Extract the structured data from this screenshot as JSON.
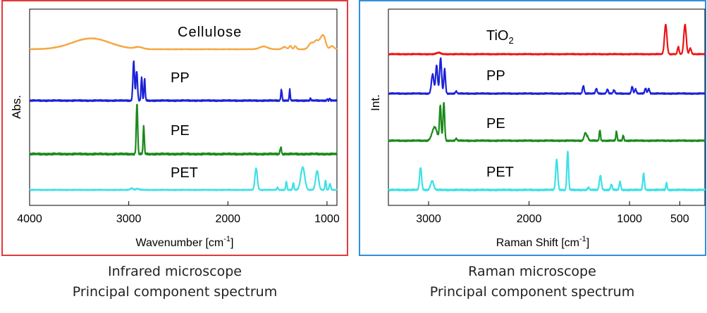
{
  "chart_data": [
    {
      "type": "line",
      "title": "Infrared microscope",
      "subtitle": "Principal component spectrum",
      "xlabel": "Wavenumber [cm",
      "xlabel_sup": "-1",
      "xlabel_end": "]",
      "ylabel": "Abs.",
      "xlim": [
        4000,
        900
      ],
      "xticks": [
        "4000",
        "3000",
        "2000",
        "1000"
      ],
      "series": [
        {
          "name": "Cellulose",
          "color": "#f5a742",
          "peaks": [
            [
              3380,
              0.7,
              190
            ],
            [
              2900,
              0.12,
              40
            ],
            [
              1640,
              0.18,
              40
            ],
            [
              1430,
              0.15,
              20
            ],
            [
              1370,
              0.22,
              12
            ],
            [
              1320,
              0.2,
              12
            ],
            [
              1160,
              0.4,
              25
            ],
            [
              1110,
              0.45,
              20
            ],
            [
              1060,
              0.6,
              25
            ],
            [
              1030,
              0.55,
              20
            ],
            [
              950,
              0.2,
              20
            ]
          ]
        },
        {
          "name": "PP",
          "color": "#1a22d6",
          "peaks": [
            [
              2950,
              1.0,
              8
            ],
            [
              2920,
              0.75,
              8
            ],
            [
              2870,
              0.6,
              6
            ],
            [
              2840,
              0.55,
              6
            ],
            [
              1460,
              0.28,
              6
            ],
            [
              1376,
              0.28,
              5
            ],
            [
              1167,
              0.07,
              4
            ],
            [
              998,
              0.05,
              4
            ],
            [
              973,
              0.06,
              4
            ]
          ]
        },
        {
          "name": "PE",
          "color": "#1a8a1a",
          "peaks": [
            [
              2917,
              1.0,
              7
            ],
            [
              2849,
              0.55,
              6
            ],
            [
              1470,
              0.1,
              6
            ],
            [
              1462,
              0.08,
              4
            ],
            [
              720,
              0.06,
              4
            ]
          ]
        },
        {
          "name": "PET",
          "color": "#3ee0e6",
          "peaks": [
            [
              2970,
              0.07,
              15
            ],
            [
              2910,
              0.05,
              15
            ],
            [
              1715,
              0.9,
              12
            ],
            [
              1500,
              0.1,
              6
            ],
            [
              1410,
              0.35,
              6
            ],
            [
              1340,
              0.3,
              6
            ],
            [
              1245,
              0.95,
              20
            ],
            [
              1100,
              0.8,
              15
            ],
            [
              1015,
              0.4,
              6
            ],
            [
              970,
              0.25,
              8
            ],
            [
              870,
              0.2,
              6
            ]
          ]
        }
      ]
    },
    {
      "type": "line",
      "title": "Raman microscope",
      "subtitle": "Principal component spectrum",
      "xlabel": "Raman Shift [cm",
      "xlabel_sup": "-1",
      "xlabel_end": "]",
      "ylabel": "Int.",
      "xlim": [
        3400,
        250
      ],
      "xticks": [
        "3000",
        "2000",
        "1000",
        "500"
      ],
      "series": [
        {
          "name": "TiO",
          "name_sub": "2",
          "color": "#ee1111",
          "peaks": [
            [
              2900,
              0.05,
              20
            ],
            [
              640,
              1.0,
              12
            ],
            [
              515,
              0.25,
              8
            ],
            [
              448,
              1.0,
              12
            ],
            [
              395,
              0.2,
              10
            ]
          ]
        },
        {
          "name": "PP",
          "color": "#1a22d6",
          "peaks": [
            [
              2960,
              0.55,
              12
            ],
            [
              2920,
              0.8,
              10
            ],
            [
              2880,
              1.0,
              10
            ],
            [
              2840,
              0.7,
              8
            ],
            [
              2725,
              0.06,
              8
            ],
            [
              1460,
              0.22,
              8
            ],
            [
              1330,
              0.14,
              8
            ],
            [
              1220,
              0.12,
              8
            ],
            [
              1155,
              0.1,
              8
            ],
            [
              973,
              0.2,
              8
            ],
            [
              940,
              0.12,
              8
            ],
            [
              841,
              0.15,
              8
            ],
            [
              809,
              0.14,
              8
            ]
          ]
        },
        {
          "name": "PE",
          "color": "#1a8a1a",
          "peaks": [
            [
              2940,
              0.35,
              25
            ],
            [
              2883,
              0.9,
              8
            ],
            [
              2848,
              1.0,
              8
            ],
            [
              2725,
              0.05,
              8
            ],
            [
              1440,
              0.2,
              12
            ],
            [
              1416,
              0.08,
              8
            ],
            [
              1295,
              0.28,
              6
            ],
            [
              1130,
              0.24,
              6
            ],
            [
              1063,
              0.14,
              6
            ]
          ]
        },
        {
          "name": "PET",
          "color": "#3ee0e6",
          "peaks": [
            [
              3080,
              0.55,
              10
            ],
            [
              2965,
              0.22,
              15
            ],
            [
              1725,
              0.75,
              10
            ],
            [
              1615,
              0.95,
              8
            ],
            [
              1410,
              0.06,
              8
            ],
            [
              1290,
              0.35,
              10
            ],
            [
              1180,
              0.14,
              8
            ],
            [
              1095,
              0.2,
              8
            ],
            [
              860,
              0.4,
              8
            ],
            [
              632,
              0.18,
              6
            ]
          ]
        }
      ]
    }
  ]
}
